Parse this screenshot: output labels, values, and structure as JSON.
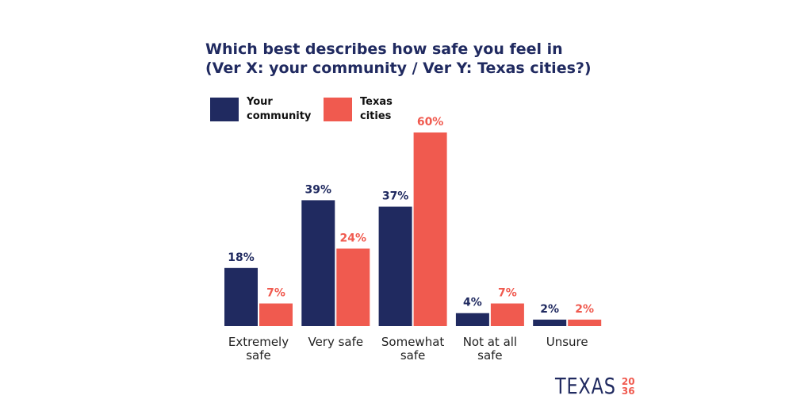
{
  "chart_data": {
    "type": "bar",
    "title": "Which best describes how safe you feel in\n(Ver X: your community / Ver Y: Texas cities?)",
    "categories": [
      "Extremely\nsafe",
      "Very safe",
      "Somewhat\nsafe",
      "Not at all\nsafe",
      "Unsure"
    ],
    "series": [
      {
        "name": "Your\ncommunity",
        "color": "#202a60",
        "values": [
          18,
          39,
          37,
          4,
          2
        ]
      },
      {
        "name": "Texas\ncities",
        "color": "#f05a4f",
        "values": [
          7,
          24,
          60,
          7,
          2
        ]
      }
    ],
    "value_suffix": "%",
    "ylim": [
      0,
      60
    ],
    "grid": false,
    "legend": "top-left"
  },
  "logo": {
    "text": "TEXAS",
    "number": "2036"
  }
}
